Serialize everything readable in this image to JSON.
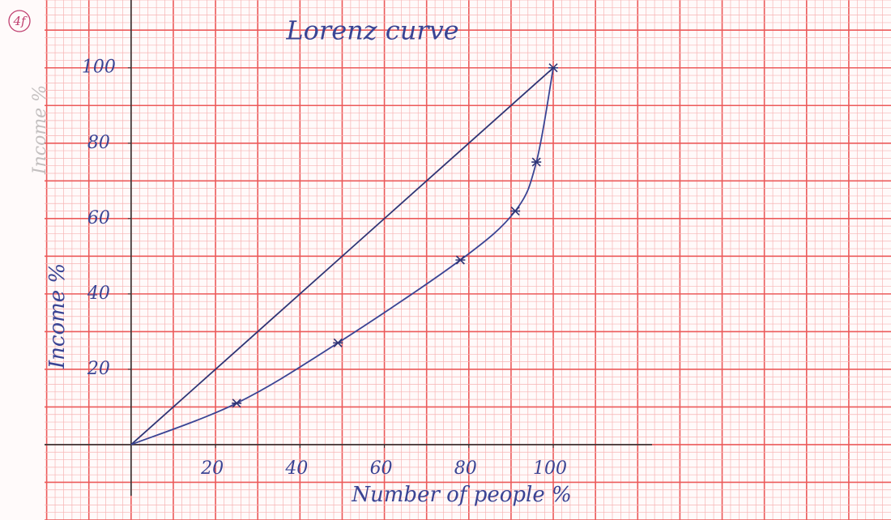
{
  "chart_data": {
    "type": "line",
    "title": "Lorenz curve",
    "x_label": "Number of people %",
    "y_label": "Income %",
    "annotations": [
      "4f",
      "Income %"
    ],
    "x": [
      0,
      25,
      49,
      78,
      91,
      96,
      100
    ],
    "series": [
      {
        "color": "#2f3575",
        "values": [
          0,
          25,
          49,
          78,
          91,
          96,
          100
        ]
      },
      {
        "color": "#3a4494",
        "values": [
          0,
          11,
          27,
          49,
          62,
          75,
          100
        ]
      }
    ],
    "xlim": [
      -20.5,
      180
    ],
    "ylim": [
      -20,
      118
    ],
    "xticks": [
      20,
      40,
      60,
      80,
      100
    ],
    "yticks": [
      20,
      40,
      60,
      80,
      100
    ],
    "grid": true
  }
}
